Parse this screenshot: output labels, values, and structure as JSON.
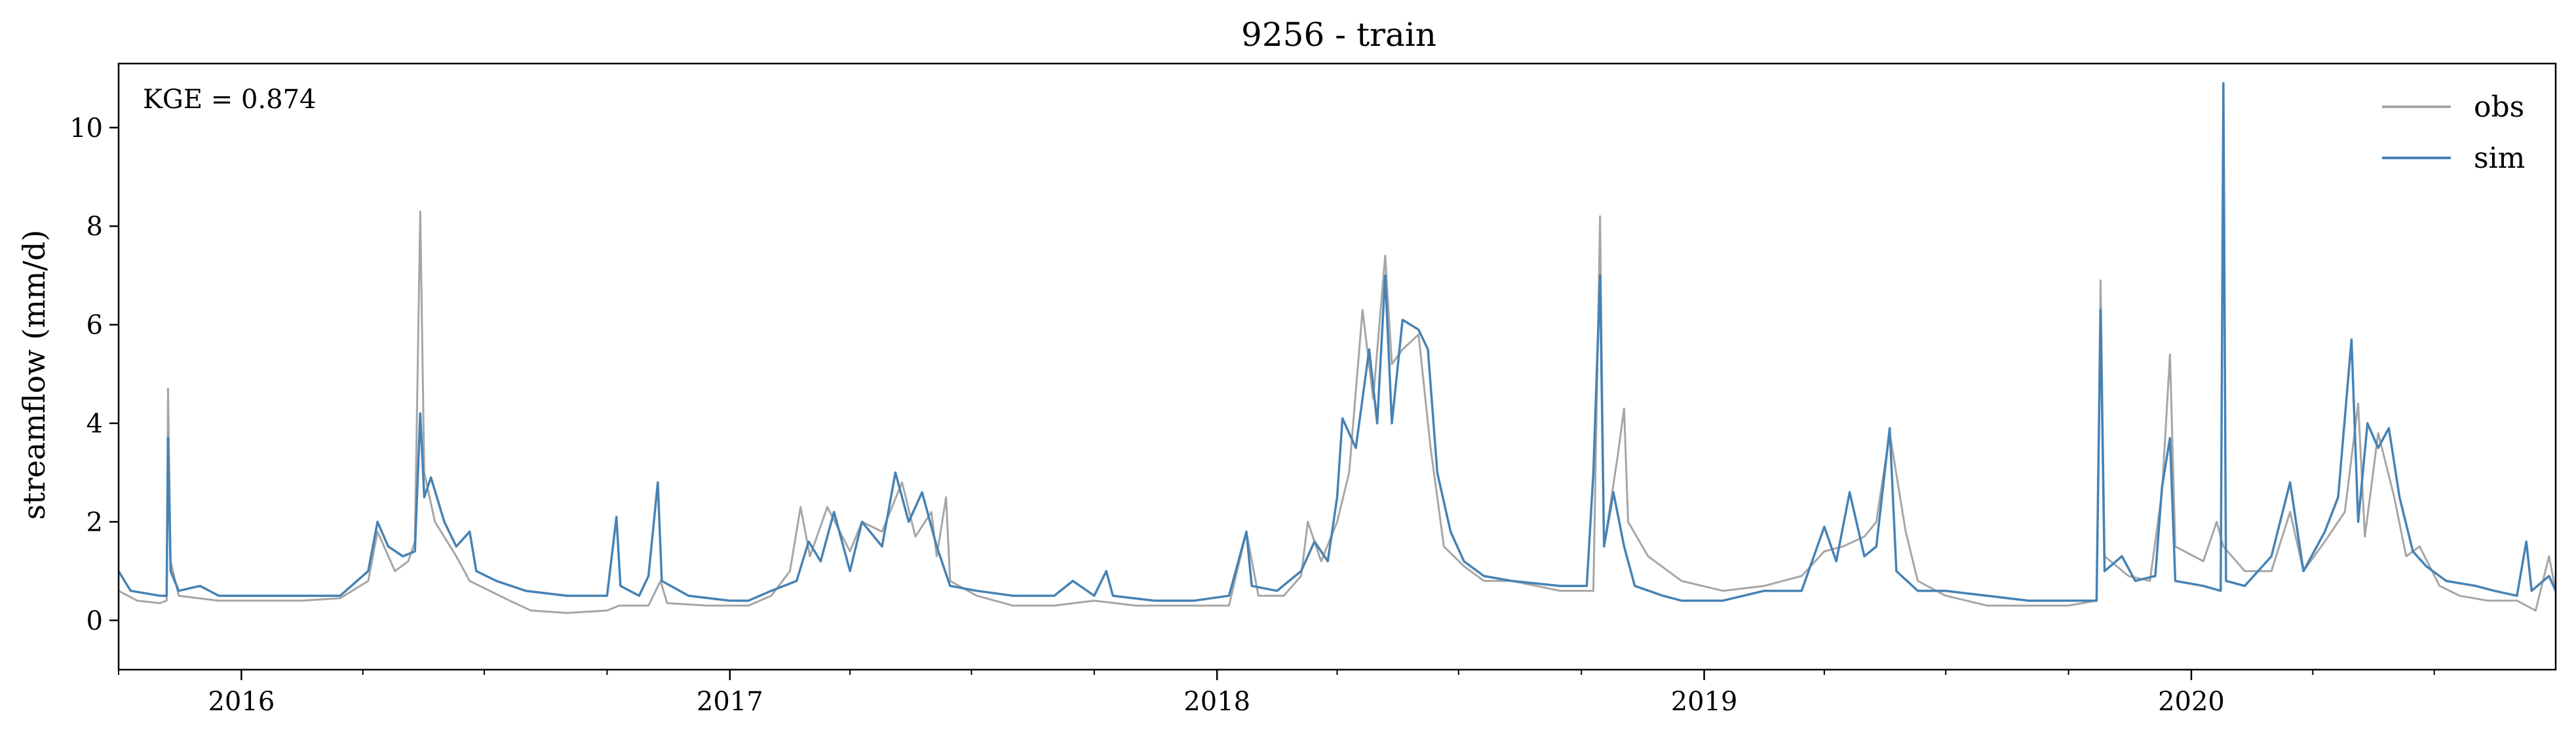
{
  "chart_data": {
    "type": "line",
    "title": "9256 - train",
    "xlabel": "",
    "ylabel": "streamflow (mm/d)",
    "annotation": "KGE = 0.874",
    "x_range": [
      "2015-10-01",
      "2020-09-30"
    ],
    "ylim": [
      -1,
      11.3
    ],
    "y_ticks": [
      0,
      2,
      4,
      6,
      8,
      10
    ],
    "x_ticks": [
      {
        "date": "2016-01-01",
        "label": "2016"
      },
      {
        "date": "2017-01-01",
        "label": "2017"
      },
      {
        "date": "2018-01-01",
        "label": "2018"
      },
      {
        "date": "2019-01-01",
        "label": "2019"
      },
      {
        "date": "2020-01-01",
        "label": "2020"
      }
    ],
    "grid": false,
    "legend_position": "top-right",
    "series": [
      {
        "name": "obs",
        "color": "#a6a6a6",
        "points": [
          [
            "2015-10-01",
            0.6
          ],
          [
            "2015-10-15",
            0.4
          ],
          [
            "2015-11-01",
            0.35
          ],
          [
            "2015-11-06",
            0.4
          ],
          [
            "2015-11-07",
            4.7
          ],
          [
            "2015-11-09",
            1.2
          ],
          [
            "2015-11-15",
            0.5
          ],
          [
            "2015-12-15",
            0.4
          ],
          [
            "2016-01-15",
            0.4
          ],
          [
            "2016-02-15",
            0.4
          ],
          [
            "2016-03-15",
            0.45
          ],
          [
            "2016-04-05",
            0.8
          ],
          [
            "2016-04-12",
            1.8
          ],
          [
            "2016-04-25",
            1.0
          ],
          [
            "2016-05-05",
            1.2
          ],
          [
            "2016-05-10",
            1.6
          ],
          [
            "2016-05-14",
            8.3
          ],
          [
            "2016-05-17",
            3.0
          ],
          [
            "2016-05-25",
            2.0
          ],
          [
            "2016-06-10",
            1.3
          ],
          [
            "2016-06-20",
            0.8
          ],
          [
            "2016-07-05",
            0.6
          ],
          [
            "2016-07-20",
            0.4
          ],
          [
            "2016-08-05",
            0.2
          ],
          [
            "2016-09-01",
            0.15
          ],
          [
            "2016-10-01",
            0.2
          ],
          [
            "2016-10-10",
            0.3
          ],
          [
            "2016-11-01",
            0.3
          ],
          [
            "2016-11-10",
            0.8
          ],
          [
            "2016-11-15",
            0.35
          ],
          [
            "2016-12-15",
            0.3
          ],
          [
            "2017-01-15",
            0.3
          ],
          [
            "2017-02-01",
            0.5
          ],
          [
            "2017-02-15",
            1.0
          ],
          [
            "2017-02-23",
            2.3
          ],
          [
            "2017-03-02",
            1.3
          ],
          [
            "2017-03-15",
            2.3
          ],
          [
            "2017-04-01",
            1.4
          ],
          [
            "2017-04-10",
            2.0
          ],
          [
            "2017-04-25",
            1.8
          ],
          [
            "2017-05-10",
            2.8
          ],
          [
            "2017-05-20",
            1.7
          ],
          [
            "2017-06-01",
            2.2
          ],
          [
            "2017-06-05",
            1.3
          ],
          [
            "2017-06-12",
            2.5
          ],
          [
            "2017-06-15",
            0.8
          ],
          [
            "2017-07-05",
            0.5
          ],
          [
            "2017-08-01",
            0.3
          ],
          [
            "2017-09-01",
            0.3
          ],
          [
            "2017-10-01",
            0.4
          ],
          [
            "2017-11-01",
            0.3
          ],
          [
            "2017-12-01",
            0.3
          ],
          [
            "2018-01-10",
            0.3
          ],
          [
            "2018-01-23",
            1.8
          ],
          [
            "2018-02-01",
            0.5
          ],
          [
            "2018-02-20",
            0.5
          ],
          [
            "2018-03-05",
            0.9
          ],
          [
            "2018-03-10",
            2.0
          ],
          [
            "2018-03-20",
            1.2
          ],
          [
            "2018-04-01",
            2.0
          ],
          [
            "2018-04-10",
            3.0
          ],
          [
            "2018-04-20",
            6.3
          ],
          [
            "2018-04-28",
            4.5
          ],
          [
            "2018-05-07",
            7.4
          ],
          [
            "2018-05-12",
            5.2
          ],
          [
            "2018-05-20",
            5.5
          ],
          [
            "2018-06-01",
            5.8
          ],
          [
            "2018-06-10",
            3.5
          ],
          [
            "2018-06-20",
            1.5
          ],
          [
            "2018-07-05",
            1.1
          ],
          [
            "2018-07-20",
            0.8
          ],
          [
            "2018-08-10",
            0.8
          ],
          [
            "2018-09-15",
            0.6
          ],
          [
            "2018-10-10",
            0.6
          ],
          [
            "2018-10-15",
            8.2
          ],
          [
            "2018-10-18",
            1.5
          ],
          [
            "2018-10-28",
            3.3
          ],
          [
            "2018-11-02",
            4.3
          ],
          [
            "2018-11-05",
            2.0
          ],
          [
            "2018-11-20",
            1.3
          ],
          [
            "2018-12-15",
            0.8
          ],
          [
            "2019-01-15",
            0.6
          ],
          [
            "2019-02-15",
            0.7
          ],
          [
            "2019-03-15",
            0.9
          ],
          [
            "2019-04-01",
            1.4
          ],
          [
            "2019-04-15",
            1.5
          ],
          [
            "2019-05-01",
            1.7
          ],
          [
            "2019-05-10",
            2.0
          ],
          [
            "2019-05-20",
            3.8
          ],
          [
            "2019-06-01",
            1.8
          ],
          [
            "2019-06-10",
            0.8
          ],
          [
            "2019-07-01",
            0.5
          ],
          [
            "2019-08-01",
            0.3
          ],
          [
            "2019-09-01",
            0.3
          ],
          [
            "2019-10-01",
            0.3
          ],
          [
            "2019-10-22",
            0.4
          ],
          [
            "2019-10-25",
            6.9
          ],
          [
            "2019-10-28",
            1.3
          ],
          [
            "2019-11-15",
            0.9
          ],
          [
            "2019-12-01",
            0.8
          ],
          [
            "2019-12-10",
            2.6
          ],
          [
            "2019-12-16",
            5.4
          ],
          [
            "2019-12-20",
            1.5
          ],
          [
            "2020-01-10",
            1.2
          ],
          [
            "2020-01-20",
            2.0
          ],
          [
            "2020-01-25",
            1.5
          ],
          [
            "2020-02-10",
            1.0
          ],
          [
            "2020-03-01",
            1.0
          ],
          [
            "2020-03-15",
            2.2
          ],
          [
            "2020-03-25",
            1.0
          ],
          [
            "2020-04-10",
            1.6
          ],
          [
            "2020-04-25",
            2.2
          ],
          [
            "2020-05-05",
            4.4
          ],
          [
            "2020-05-10",
            1.7
          ],
          [
            "2020-05-20",
            3.8
          ],
          [
            "2020-06-01",
            2.5
          ],
          [
            "2020-06-10",
            1.3
          ],
          [
            "2020-06-20",
            1.5
          ],
          [
            "2020-07-05",
            0.7
          ],
          [
            "2020-07-20",
            0.5
          ],
          [
            "2020-08-10",
            0.4
          ],
          [
            "2020-09-01",
            0.4
          ],
          [
            "2020-09-15",
            0.2
          ],
          [
            "2020-09-25",
            1.3
          ],
          [
            "2020-09-30",
            0.6
          ]
        ]
      },
      {
        "name": "sim",
        "color": "#4682b4",
        "points": [
          [
            "2015-10-01",
            1.0
          ],
          [
            "2015-10-10",
            0.6
          ],
          [
            "2015-11-01",
            0.5
          ],
          [
            "2015-11-06",
            0.5
          ],
          [
            "2015-11-07",
            3.7
          ],
          [
            "2015-11-09",
            1.0
          ],
          [
            "2015-11-15",
            0.6
          ],
          [
            "2015-12-01",
            0.7
          ],
          [
            "2015-12-15",
            0.5
          ],
          [
            "2016-01-15",
            0.5
          ],
          [
            "2016-02-15",
            0.5
          ],
          [
            "2016-03-15",
            0.5
          ],
          [
            "2016-04-05",
            1.0
          ],
          [
            "2016-04-12",
            2.0
          ],
          [
            "2016-04-20",
            1.5
          ],
          [
            "2016-05-01",
            1.3
          ],
          [
            "2016-05-10",
            1.4
          ],
          [
            "2016-05-14",
            4.2
          ],
          [
            "2016-05-17",
            2.5
          ],
          [
            "2016-05-22",
            2.9
          ],
          [
            "2016-06-01",
            2.0
          ],
          [
            "2016-06-10",
            1.5
          ],
          [
            "2016-06-20",
            1.8
          ],
          [
            "2016-06-25",
            1.0
          ],
          [
            "2016-07-10",
            0.8
          ],
          [
            "2016-08-01",
            0.6
          ],
          [
            "2016-09-01",
            0.5
          ],
          [
            "2016-10-01",
            0.5
          ],
          [
            "2016-10-08",
            2.1
          ],
          [
            "2016-10-11",
            0.7
          ],
          [
            "2016-10-25",
            0.5
          ],
          [
            "2016-11-01",
            0.9
          ],
          [
            "2016-11-08",
            2.8
          ],
          [
            "2016-11-11",
            0.8
          ],
          [
            "2016-12-01",
            0.5
          ],
          [
            "2017-01-01",
            0.4
          ],
          [
            "2017-01-15",
            0.4
          ],
          [
            "2017-02-01",
            0.6
          ],
          [
            "2017-02-20",
            0.8
          ],
          [
            "2017-03-01",
            1.6
          ],
          [
            "2017-03-10",
            1.2
          ],
          [
            "2017-03-20",
            2.2
          ],
          [
            "2017-04-01",
            1.0
          ],
          [
            "2017-04-10",
            2.0
          ],
          [
            "2017-04-25",
            1.5
          ],
          [
            "2017-05-05",
            3.0
          ],
          [
            "2017-05-15",
            2.0
          ],
          [
            "2017-05-25",
            2.6
          ],
          [
            "2017-06-05",
            1.5
          ],
          [
            "2017-06-15",
            0.7
          ],
          [
            "2017-07-05",
            0.6
          ],
          [
            "2017-08-01",
            0.5
          ],
          [
            "2017-09-01",
            0.5
          ],
          [
            "2017-09-15",
            0.8
          ],
          [
            "2017-10-01",
            0.5
          ],
          [
            "2017-10-10",
            1.0
          ],
          [
            "2017-10-15",
            0.5
          ],
          [
            "2017-11-15",
            0.4
          ],
          [
            "2017-12-15",
            0.4
          ],
          [
            "2018-01-10",
            0.5
          ],
          [
            "2018-01-23",
            1.8
          ],
          [
            "2018-01-27",
            0.7
          ],
          [
            "2018-02-15",
            0.6
          ],
          [
            "2018-03-05",
            1.0
          ],
          [
            "2018-03-15",
            1.6
          ],
          [
            "2018-03-25",
            1.2
          ],
          [
            "2018-04-01",
            2.5
          ],
          [
            "2018-04-05",
            4.1
          ],
          [
            "2018-04-15",
            3.5
          ],
          [
            "2018-04-25",
            5.5
          ],
          [
            "2018-05-01",
            4.0
          ],
          [
            "2018-05-07",
            7.0
          ],
          [
            "2018-05-12",
            4.0
          ],
          [
            "2018-05-20",
            6.1
          ],
          [
            "2018-06-01",
            5.9
          ],
          [
            "2018-06-08",
            5.5
          ],
          [
            "2018-06-15",
            3.0
          ],
          [
            "2018-06-25",
            1.8
          ],
          [
            "2018-07-05",
            1.2
          ],
          [
            "2018-07-20",
            0.9
          ],
          [
            "2018-08-10",
            0.8
          ],
          [
            "2018-09-15",
            0.7
          ],
          [
            "2018-10-05",
            0.7
          ],
          [
            "2018-10-10",
            3.0
          ],
          [
            "2018-10-15",
            7.0
          ],
          [
            "2018-10-18",
            1.5
          ],
          [
            "2018-10-25",
            2.6
          ],
          [
            "2018-11-02",
            1.5
          ],
          [
            "2018-11-10",
            0.7
          ],
          [
            "2018-12-01",
            0.5
          ],
          [
            "2018-12-15",
            0.4
          ],
          [
            "2019-01-15",
            0.4
          ],
          [
            "2019-02-15",
            0.6
          ],
          [
            "2019-03-15",
            0.6
          ],
          [
            "2019-04-01",
            1.9
          ],
          [
            "2019-04-10",
            1.2
          ],
          [
            "2019-04-20",
            2.6
          ],
          [
            "2019-05-01",
            1.3
          ],
          [
            "2019-05-10",
            1.5
          ],
          [
            "2019-05-20",
            3.9
          ],
          [
            "2019-05-25",
            1.0
          ],
          [
            "2019-06-10",
            0.6
          ],
          [
            "2019-07-01",
            0.6
          ],
          [
            "2019-08-01",
            0.5
          ],
          [
            "2019-09-01",
            0.4
          ],
          [
            "2019-10-01",
            0.4
          ],
          [
            "2019-10-22",
            0.4
          ],
          [
            "2019-10-25",
            6.3
          ],
          [
            "2019-10-28",
            1.0
          ],
          [
            "2019-11-10",
            1.3
          ],
          [
            "2019-11-20",
            0.8
          ],
          [
            "2019-12-05",
            0.9
          ],
          [
            "2019-12-10",
            2.7
          ],
          [
            "2019-12-16",
            3.7
          ],
          [
            "2019-12-20",
            0.8
          ],
          [
            "2020-01-10",
            0.7
          ],
          [
            "2020-01-23",
            0.6
          ],
          [
            "2020-01-25",
            10.9
          ],
          [
            "2020-01-27",
            0.8
          ],
          [
            "2020-02-10",
            0.7
          ],
          [
            "2020-03-01",
            1.3
          ],
          [
            "2020-03-15",
            2.8
          ],
          [
            "2020-03-25",
            1.0
          ],
          [
            "2020-04-10",
            1.8
          ],
          [
            "2020-04-20",
            2.5
          ],
          [
            "2020-04-30",
            5.7
          ],
          [
            "2020-05-05",
            2.0
          ],
          [
            "2020-05-12",
            4.0
          ],
          [
            "2020-05-20",
            3.5
          ],
          [
            "2020-05-28",
            3.9
          ],
          [
            "2020-06-05",
            2.5
          ],
          [
            "2020-06-15",
            1.4
          ],
          [
            "2020-06-25",
            1.1
          ],
          [
            "2020-07-10",
            0.8
          ],
          [
            "2020-08-01",
            0.7
          ],
          [
            "2020-08-15",
            0.6
          ],
          [
            "2020-09-01",
            0.5
          ],
          [
            "2020-09-08",
            1.6
          ],
          [
            "2020-09-12",
            0.6
          ],
          [
            "2020-09-25",
            0.9
          ],
          [
            "2020-09-30",
            0.6
          ]
        ]
      }
    ]
  }
}
